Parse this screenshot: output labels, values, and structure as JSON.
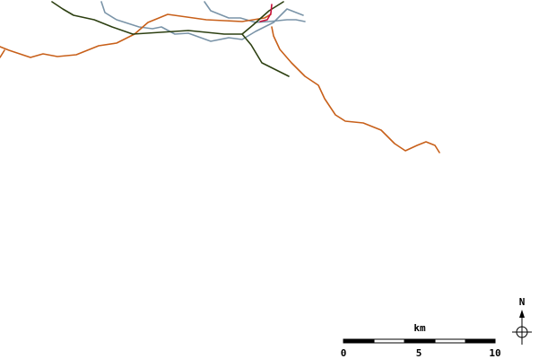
{
  "scale_bar": {
    "unit": "km",
    "labels": [
      "0",
      "5",
      "10"
    ]
  },
  "compass": {
    "label": "N"
  }
}
